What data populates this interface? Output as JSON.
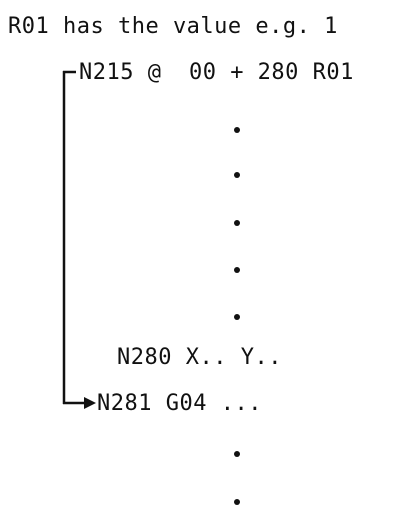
{
  "intro": "R01 has the value e.g. 1",
  "lines": {
    "jump": "N215 @  00 + 280 R01",
    "target": "N280 X.. Y..",
    "next": "N281 G04 ..."
  },
  "colors": {
    "ink": "#111111",
    "background": "#ffffff"
  }
}
